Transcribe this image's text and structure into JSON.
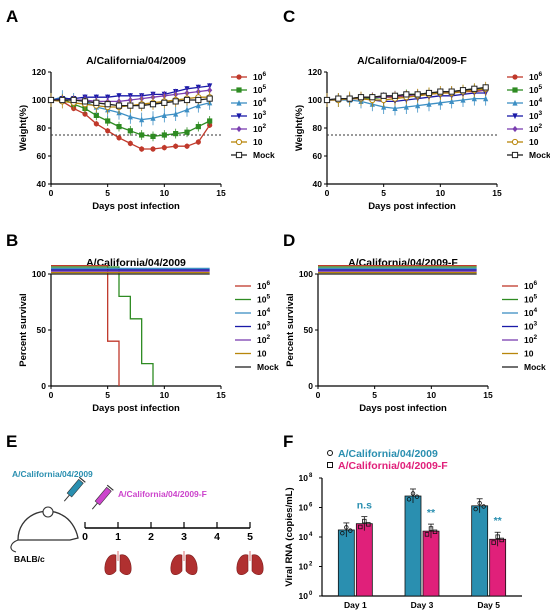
{
  "panels": {
    "A": "A",
    "B": "B",
    "C": "C",
    "D": "D",
    "E": "E",
    "F": "F"
  },
  "legend_doses": [
    "10^6",
    "10^5",
    "10^4",
    "10^3",
    "10^2",
    "10",
    "Mock"
  ],
  "legend_doses_display": [
    {
      "base": "10",
      "sup": "6"
    },
    {
      "base": "10",
      "sup": "5"
    },
    {
      "base": "10",
      "sup": "4"
    },
    {
      "base": "10",
      "sup": "3"
    },
    {
      "base": "10",
      "sup": "2"
    },
    {
      "base": "10",
      "sup": ""
    },
    {
      "base": "Mock",
      "sup": ""
    }
  ],
  "dose_colors": [
    "#c0392b",
    "#2e8b22",
    "#3d8fc4",
    "#1a1aa8",
    "#7b3fb0",
    "#b8860b",
    "#222222"
  ],
  "chart_data": [
    {
      "panel": "A",
      "type": "line",
      "title": "A/California/04/2009",
      "xlabel": "Days post infection",
      "ylabel": "Weight(%)",
      "xlim": [
        0,
        15
      ],
      "ylim": [
        40,
        120
      ],
      "xticks": [
        0,
        5,
        10,
        15
      ],
      "yticks": [
        40,
        60,
        80,
        100,
        120
      ],
      "threshold": 75,
      "x": [
        0,
        1,
        2,
        3,
        4,
        5,
        6,
        7,
        8,
        9,
        10,
        11,
        12,
        13,
        14
      ],
      "series": [
        {
          "name": "10^6",
          "values": [
            100,
            99,
            94,
            90,
            83,
            78,
            73,
            69,
            65,
            65,
            66,
            67,
            67,
            70,
            82
          ]
        },
        {
          "name": "10^5",
          "values": [
            100,
            101,
            97,
            94,
            89,
            85,
            81,
            78,
            75,
            74,
            75,
            76,
            77,
            81,
            85
          ]
        },
        {
          "name": "10^4",
          "values": [
            100,
            102,
            100,
            99,
            95,
            93,
            91,
            88,
            86,
            87,
            89,
            90,
            93,
            96,
            98
          ]
        },
        {
          "name": "10^3",
          "values": [
            100,
            101,
            101,
            102,
            102,
            102,
            103,
            103,
            103,
            104,
            104,
            106,
            108,
            109,
            110
          ]
        },
        {
          "name": "10^2",
          "values": [
            100,
            100,
            100,
            100,
            99,
            99,
            99,
            100,
            101,
            102,
            103,
            104,
            105,
            106,
            107
          ]
        },
        {
          "name": "10",
          "values": [
            100,
            99,
            98,
            97,
            96,
            95,
            95,
            96,
            97,
            98,
            99,
            100,
            101,
            102,
            102
          ]
        },
        {
          "name": "Mock",
          "values": [
            100,
            100,
            100,
            99,
            98,
            97,
            96,
            96,
            96,
            97,
            98,
            99,
            100,
            100,
            101
          ]
        }
      ]
    },
    {
      "panel": "C",
      "type": "line",
      "title": "A/California/04/2009-F",
      "xlabel": "Days post infection",
      "ylabel": "Weight(%)",
      "xlim": [
        0,
        15
      ],
      "ylim": [
        40,
        120
      ],
      "xticks": [
        0,
        5,
        10,
        15
      ],
      "yticks": [
        40,
        60,
        80,
        100,
        120
      ],
      "threshold": 75,
      "x": [
        0,
        1,
        2,
        3,
        4,
        5,
        6,
        7,
        8,
        9,
        10,
        11,
        12,
        13,
        14
      ],
      "series": [
        {
          "name": "10^6",
          "values": [
            100,
            100,
            101,
            101,
            102,
            102,
            102,
            103,
            104,
            104,
            105,
            105,
            106,
            106,
            107
          ]
        },
        {
          "name": "10^5",
          "values": [
            100,
            101,
            101,
            102,
            101,
            102,
            103,
            104,
            104,
            105,
            105,
            106,
            107,
            108,
            108
          ]
        },
        {
          "name": "10^4",
          "values": [
            100,
            100,
            100,
            99,
            97,
            95,
            94,
            95,
            96,
            97,
            98,
            99,
            100,
            101,
            101
          ]
        },
        {
          "name": "10^3",
          "values": [
            100,
            100,
            101,
            101,
            100,
            99,
            99,
            100,
            101,
            102,
            103,
            103,
            104,
            105,
            105
          ]
        },
        {
          "name": "10^2",
          "values": [
            100,
            101,
            101,
            102,
            102,
            102,
            103,
            103,
            104,
            104,
            105,
            106,
            106,
            107,
            107
          ]
        },
        {
          "name": "10",
          "values": [
            100,
            100,
            101,
            101,
            100,
            100,
            101,
            102,
            103,
            104,
            105,
            105,
            106,
            107,
            108
          ]
        },
        {
          "name": "Mock",
          "values": [
            100,
            101,
            101,
            102,
            102,
            103,
            103,
            104,
            104,
            105,
            106,
            106,
            107,
            108,
            109
          ]
        }
      ]
    },
    {
      "panel": "B",
      "type": "line",
      "title": "A/California/04/2009",
      "xlabel": "Days post infection",
      "ylabel": "Percent survival",
      "xlim": [
        0,
        15
      ],
      "ylim": [
        0,
        100
      ],
      "xticks": [
        0,
        5,
        10,
        15
      ],
      "yticks": [
        0,
        50,
        100
      ],
      "series": [
        {
          "name": "10^6",
          "steps": [
            [
              0,
              100
            ],
            [
              5,
              100
            ],
            [
              5,
              40
            ],
            [
              6,
              40
            ],
            [
              6,
              0
            ]
          ]
        },
        {
          "name": "10^5",
          "steps": [
            [
              0,
              100
            ],
            [
              6,
              100
            ],
            [
              6,
              80
            ],
            [
              7,
              80
            ],
            [
              7,
              60
            ],
            [
              8,
              60
            ],
            [
              8,
              20
            ],
            [
              9,
              20
            ],
            [
              9,
              0
            ]
          ]
        },
        {
          "name": "10^4",
          "steps": [
            [
              0,
              100
            ],
            [
              14,
              100
            ]
          ]
        },
        {
          "name": "10^3",
          "steps": [
            [
              0,
              100
            ],
            [
              14,
              100
            ]
          ]
        },
        {
          "name": "10^2",
          "steps": [
            [
              0,
              100
            ],
            [
              14,
              100
            ]
          ]
        },
        {
          "name": "10",
          "steps": [
            [
              0,
              100
            ],
            [
              14,
              100
            ]
          ]
        },
        {
          "name": "Mock",
          "steps": [
            [
              0,
              100
            ],
            [
              14,
              100
            ]
          ]
        }
      ]
    },
    {
      "panel": "D",
      "type": "line",
      "title": "A/California/04/2009-F",
      "xlabel": "Days post infection",
      "ylabel": "Percent survival",
      "xlim": [
        0,
        15
      ],
      "ylim": [
        0,
        100
      ],
      "xticks": [
        0,
        5,
        10,
        15
      ],
      "yticks": [
        0,
        50,
        100
      ],
      "series": [
        {
          "name": "10^6",
          "steps": [
            [
              0,
              100
            ],
            [
              14,
              100
            ]
          ]
        },
        {
          "name": "10^5",
          "steps": [
            [
              0,
              100
            ],
            [
              14,
              100
            ]
          ]
        },
        {
          "name": "10^4",
          "steps": [
            [
              0,
              100
            ],
            [
              14,
              100
            ]
          ]
        },
        {
          "name": "10^3",
          "steps": [
            [
              0,
              100
            ],
            [
              14,
              100
            ]
          ]
        },
        {
          "name": "10^2",
          "steps": [
            [
              0,
              100
            ],
            [
              14,
              100
            ]
          ]
        },
        {
          "name": "10",
          "steps": [
            [
              0,
              100
            ],
            [
              14,
              100
            ]
          ]
        },
        {
          "name": "Mock",
          "steps": [
            [
              0,
              100
            ],
            [
              14,
              100
            ]
          ]
        }
      ]
    },
    {
      "panel": "F",
      "type": "bar",
      "ylabel": "Viral RNA (copies/mL)",
      "yscale": "log",
      "ylim": [
        1,
        100000000
      ],
      "yticks": [
        {
          "base": "10",
          "sup": "0"
        },
        {
          "base": "10",
          "sup": "2"
        },
        {
          "base": "10",
          "sup": "4"
        },
        {
          "base": "10",
          "sup": "6"
        },
        {
          "base": "10",
          "sup": "8"
        }
      ],
      "ytick_values": [
        1,
        100,
        10000,
        1000000,
        100000000
      ],
      "categories": [
        "Day 1",
        "Day 3",
        "Day 5"
      ],
      "series": [
        {
          "name": "A/California/04/2009",
          "color": "#2a8fb0",
          "values": [
            30000,
            6000000,
            1300000
          ]
        },
        {
          "name": "A/California/04/2009-F",
          "color": "#e0207a",
          "values": [
            80000,
            25000,
            7000
          ]
        }
      ],
      "annotations": [
        "n.s",
        "**",
        "**"
      ],
      "annotation_color": "#2a8fb0"
    }
  ],
  "timeline": {
    "strain1": "A/California/04/2009",
    "strain2": "A/California/04/2009-F",
    "host": "BALB/c",
    "days": [
      "0",
      "1",
      "2",
      "3",
      "4",
      "5"
    ],
    "strain1_color": "#2a8fb0",
    "strain2_color": "#cc44cc"
  }
}
